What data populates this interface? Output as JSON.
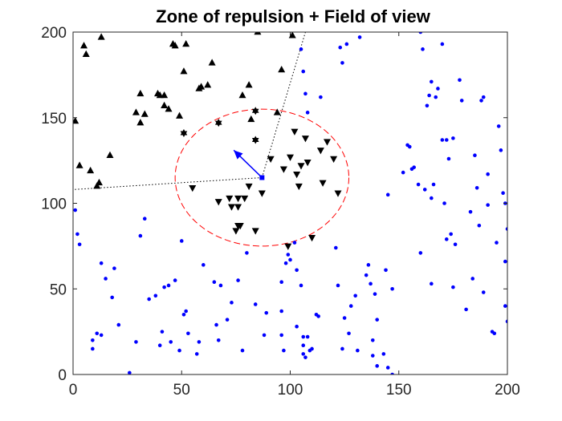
{
  "chart_data": {
    "type": "scatter",
    "title": "Zone of repulsion + Field of view",
    "xlabel": "",
    "ylabel": "",
    "xlim": [
      0,
      200
    ],
    "ylim": [
      0,
      200
    ],
    "xticks": [
      0,
      50,
      100,
      150,
      200
    ],
    "yticks": [
      0,
      50,
      100,
      150,
      200
    ],
    "grid": false,
    "box": true,
    "colors": {
      "outside": "#0000ff",
      "inside": "#000000",
      "focal": "#0000ff",
      "heading": "#0000ff",
      "zone_circle": "#ff0000",
      "fov_lines": "#000000"
    },
    "focal_agent": {
      "x": 87,
      "y": 115
    },
    "heading_arrow": {
      "from": [
        87,
        115
      ],
      "to": [
        74,
        131
      ]
    },
    "zone_of_repulsion": {
      "center": [
        87,
        115
      ],
      "radius_x": 40,
      "radius_y": 40
    },
    "field_of_view": [
      {
        "from": [
          87,
          115
        ],
        "to": [
          107,
          200
        ]
      },
      {
        "from": [
          87,
          115
        ],
        "to": [
          0,
          108
        ]
      }
    ],
    "series": [
      {
        "marker": "dot",
        "points": [
          [
            1,
            96
          ],
          [
            2,
            82
          ],
          [
            3,
            76
          ],
          [
            9,
            20
          ],
          [
            9,
            15
          ],
          [
            11,
            24
          ],
          [
            13,
            23
          ],
          [
            13,
            65
          ],
          [
            15,
            56
          ],
          [
            18,
            45
          ],
          [
            19,
            62
          ],
          [
            21,
            29
          ],
          [
            26,
            1
          ],
          [
            29,
            19
          ],
          [
            31,
            81
          ],
          [
            33,
            91
          ],
          [
            35,
            44
          ],
          [
            38,
            46
          ],
          [
            40,
            17
          ],
          [
            41,
            25
          ],
          [
            42,
            51
          ],
          [
            44,
            52
          ],
          [
            45,
            19
          ],
          [
            47,
            55
          ],
          [
            49,
            14
          ],
          [
            50,
            78
          ],
          [
            51,
            35
          ],
          [
            52,
            37
          ],
          [
            53,
            24
          ],
          [
            57,
            12
          ],
          [
            58,
            19
          ],
          [
            60,
            64
          ],
          [
            65,
            54
          ],
          [
            66,
            29
          ],
          [
            67,
            20
          ],
          [
            68,
            52
          ],
          [
            71,
            32
          ],
          [
            73,
            42
          ],
          [
            76,
            55
          ],
          [
            78,
            14
          ],
          [
            80,
            71
          ],
          [
            84,
            41
          ],
          [
            89,
            36
          ],
          [
            88,
            23
          ],
          [
            96,
            37
          ],
          [
            96,
            54
          ],
          [
            96,
            23
          ],
          [
            97,
            14
          ],
          [
            102,
            77
          ],
          [
            103,
            28
          ],
          [
            98,
            65
          ],
          [
            99,
            70
          ],
          [
            100,
            67
          ],
          [
            103,
            61
          ],
          [
            105,
            52
          ],
          [
            106,
            22
          ],
          [
            106,
            17
          ],
          [
            106,
            12
          ],
          [
            107,
            10
          ],
          [
            108,
            22
          ],
          [
            109,
            14
          ],
          [
            110,
            15
          ],
          [
            112,
            35
          ],
          [
            113,
            34
          ],
          [
            108,
            153
          ],
          [
            107,
            164
          ],
          [
            105,
            190
          ],
          [
            106,
            177
          ],
          [
            114,
            162
          ],
          [
            121,
            74
          ],
          [
            122,
            52
          ],
          [
            123,
            191
          ],
          [
            124,
            182
          ],
          [
            124,
            15
          ],
          [
            125,
            33
          ],
          [
            126,
            193
          ],
          [
            128,
            40
          ],
          [
            127,
            24
          ],
          [
            130,
            46
          ],
          [
            131,
            14
          ],
          [
            132,
            197
          ],
          [
            135,
            58
          ],
          [
            136,
            64
          ],
          [
            137,
            53
          ],
          [
            138,
            20
          ],
          [
            138,
            11
          ],
          [
            139,
            47
          ],
          [
            140,
            32
          ],
          [
            140,
            5
          ],
          [
            144,
            61
          ],
          [
            143,
            12
          ],
          [
            145,
            4
          ],
          [
            145,
            105
          ],
          [
            147,
            50
          ],
          [
            147,
            0
          ],
          [
            152,
            118
          ],
          [
            154,
            134
          ],
          [
            155,
            133
          ],
          [
            156,
            120
          ],
          [
            157,
            121
          ],
          [
            159,
            111
          ],
          [
            160,
            71
          ],
          [
            160,
            200
          ],
          [
            161,
            190
          ],
          [
            162,
            108
          ],
          [
            163,
            157
          ],
          [
            165,
            53
          ],
          [
            165,
            103
          ],
          [
            164,
            163
          ],
          [
            165,
            171
          ],
          [
            166,
            111
          ],
          [
            167,
            162
          ],
          [
            168,
            167
          ],
          [
            170,
            137
          ],
          [
            170,
            193
          ],
          [
            171,
            100
          ],
          [
            172,
            137
          ],
          [
            172,
            79
          ],
          [
            173,
            126
          ],
          [
            174,
            82
          ],
          [
            175,
            138
          ],
          [
            175,
            51
          ],
          [
            176,
            76
          ],
          [
            178,
            172
          ],
          [
            179,
            160
          ],
          [
            181,
            38
          ],
          [
            183,
            95
          ],
          [
            184,
            56
          ],
          [
            185,
            128
          ],
          [
            186,
            109
          ],
          [
            187,
            87
          ],
          [
            188,
            160
          ],
          [
            189,
            162
          ],
          [
            189,
            48
          ],
          [
            191,
            99
          ],
          [
            191,
            117
          ],
          [
            193,
            25
          ],
          [
            194,
            24
          ],
          [
            195,
            77
          ],
          [
            196,
            145
          ],
          [
            197,
            131
          ],
          [
            198,
            106
          ],
          [
            199,
            100
          ],
          [
            199,
            40
          ],
          [
            199,
            66
          ],
          [
            200,
            31
          ],
          [
            200,
            85
          ],
          [
            201,
            188
          ],
          [
            202,
            13
          ],
          [
            202,
            43
          ]
        ]
      },
      {
        "marker": "triangle-up",
        "points": [
          [
            1,
            148
          ],
          [
            3,
            122
          ],
          [
            5,
            192
          ],
          [
            6,
            187
          ],
          [
            8,
            119
          ],
          [
            11,
            110
          ],
          [
            12,
            112
          ],
          [
            13,
            197
          ],
          [
            17,
            128
          ],
          [
            29,
            153
          ],
          [
            31,
            164
          ],
          [
            31,
            147
          ],
          [
            33,
            152
          ],
          [
            39,
            164
          ],
          [
            40,
            163
          ],
          [
            42,
            163
          ],
          [
            42,
            157
          ],
          [
            44,
            155
          ],
          [
            46,
            193
          ],
          [
            47,
            192
          ],
          [
            49,
            151
          ],
          [
            51,
            177
          ],
          [
            52,
            193
          ],
          [
            58,
            167
          ],
          [
            59,
            168
          ],
          [
            62,
            169
          ],
          [
            64,
            182
          ],
          [
            78,
            163
          ],
          [
            81,
            169
          ],
          [
            82,
            149
          ],
          [
            85,
            200
          ],
          [
            94,
            153
          ],
          [
            96,
            178
          ],
          [
            101,
            198
          ]
        ]
      },
      {
        "marker": "hexagram",
        "points": [
          [
            51,
            141
          ],
          [
            67,
            147
          ],
          [
            84,
            154
          ],
          [
            84,
            137
          ]
        ]
      },
      {
        "marker": "triangle-down",
        "points": [
          [
            55,
            109
          ],
          [
            67,
            101
          ],
          [
            72,
            103
          ],
          [
            73,
            98
          ],
          [
            76,
            103
          ],
          [
            76,
            98
          ],
          [
            76,
            87
          ],
          [
            75,
            84
          ],
          [
            77,
            87
          ],
          [
            79,
            103
          ],
          [
            81,
            110
          ],
          [
            87,
            106
          ],
          [
            91,
            126
          ],
          [
            97,
            120
          ],
          [
            100,
            127
          ],
          [
            102,
            142
          ],
          [
            103,
            117
          ],
          [
            105,
            122
          ],
          [
            104,
            110
          ],
          [
            107,
            138
          ],
          [
            108,
            124
          ],
          [
            114,
            131
          ],
          [
            115,
            112
          ],
          [
            117,
            136
          ],
          [
            120,
            126
          ],
          [
            122,
            106
          ],
          [
            84,
            84
          ],
          [
            99,
            75
          ],
          [
            110,
            80
          ]
        ]
      }
    ]
  }
}
